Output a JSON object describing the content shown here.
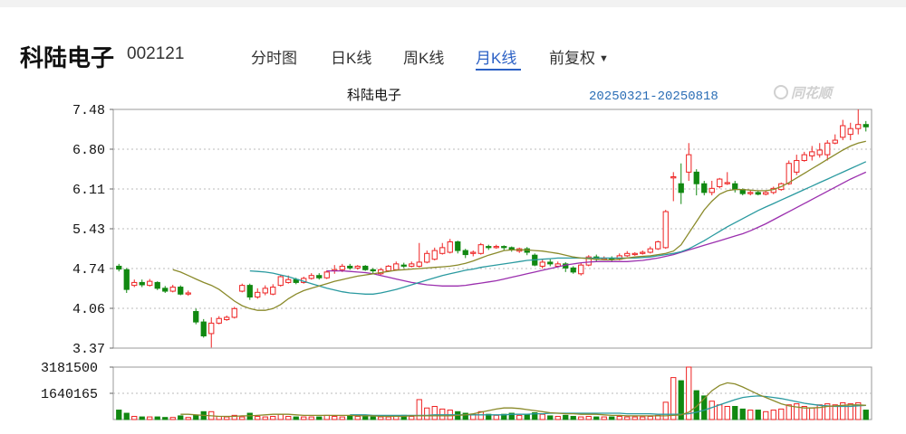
{
  "header": {
    "stock_name": "科陆电子",
    "stock_code": "002121",
    "tabs": [
      {
        "label": "分时图",
        "active": false
      },
      {
        "label": "日K线",
        "active": false
      },
      {
        "label": "周K线",
        "active": false
      },
      {
        "label": "月K线",
        "active": true
      },
      {
        "label": "前复权",
        "active": false,
        "dropdown": true
      }
    ],
    "dropdown_glyph": "▼"
  },
  "colors": {
    "up": "#ee2222",
    "down": "#118811",
    "ma1": "#8a8a2a",
    "ma2": "#2a9aa0",
    "ma3": "#9b2fae",
    "accent": "#2a5fc4"
  },
  "chart_data": {
    "type": "candlestick",
    "title": "科陆电子",
    "date_range": "20250321-20250818",
    "watermark": "同花顺",
    "price_ticks": [
      "7.48",
      "6.80",
      "6.11",
      "5.43",
      "4.74",
      "4.06",
      "3.37"
    ],
    "ylim": [
      3.37,
      7.48
    ],
    "volume_ticks": [
      "3181500",
      "1640165"
    ],
    "volume_max": 3181500,
    "candles": [
      [
        4.78,
        4.73,
        4.82,
        4.69,
        0.18
      ],
      [
        4.72,
        4.38,
        4.75,
        4.32,
        0.12
      ],
      [
        4.45,
        4.5,
        4.55,
        4.42,
        0.06
      ],
      [
        4.5,
        4.46,
        4.55,
        4.42,
        0.05
      ],
      [
        4.45,
        4.52,
        4.56,
        4.43,
        0.05
      ],
      [
        4.5,
        4.4,
        4.52,
        4.37,
        0.05
      ],
      [
        4.4,
        4.35,
        4.44,
        4.32,
        0.04
      ],
      [
        4.35,
        4.42,
        4.46,
        4.33,
        0.04
      ],
      [
        4.42,
        4.3,
        4.45,
        4.28,
        0.07
      ],
      [
        4.3,
        4.32,
        4.36,
        4.27,
        0.04
      ],
      [
        4.0,
        3.82,
        4.05,
        3.78,
        0.08
      ],
      [
        3.82,
        3.58,
        3.87,
        3.55,
        0.15
      ],
      [
        3.62,
        3.8,
        3.9,
        3.38,
        0.15
      ],
      [
        3.8,
        3.88,
        3.92,
        3.78,
        0.06
      ],
      [
        3.86,
        3.9,
        3.93,
        3.84,
        0.05
      ],
      [
        3.9,
        4.05,
        4.08,
        3.88,
        0.08
      ],
      [
        4.35,
        4.45,
        4.48,
        4.33,
        0.05
      ],
      [
        4.45,
        4.25,
        4.48,
        4.2,
        0.12
      ],
      [
        4.25,
        4.33,
        4.4,
        4.22,
        0.06
      ],
      [
        4.32,
        4.4,
        4.45,
        4.28,
        0.05
      ],
      [
        4.3,
        4.42,
        4.47,
        4.28,
        0.06
      ],
      [
        4.45,
        4.6,
        4.63,
        4.43,
        0.1
      ],
      [
        4.5,
        4.55,
        4.62,
        4.48,
        0.06
      ],
      [
        4.55,
        4.5,
        4.58,
        4.47,
        0.05
      ],
      [
        4.5,
        4.57,
        4.6,
        4.48,
        0.05
      ],
      [
        4.57,
        4.62,
        4.66,
        4.55,
        0.05
      ],
      [
        4.62,
        4.58,
        4.66,
        4.55,
        0.05
      ],
      [
        4.58,
        4.68,
        4.71,
        4.56,
        0.08
      ],
      [
        4.7,
        4.72,
        4.8,
        4.65,
        0.06
      ],
      [
        4.72,
        4.78,
        4.82,
        4.68,
        0.05
      ],
      [
        4.78,
        4.75,
        4.82,
        4.72,
        0.06
      ],
      [
        4.75,
        4.78,
        4.8,
        4.72,
        0.06
      ],
      [
        4.78,
        4.72,
        4.8,
        4.7,
        0.08
      ],
      [
        4.72,
        4.7,
        4.75,
        4.66,
        0.05
      ],
      [
        4.65,
        4.72,
        4.75,
        4.63,
        0.05
      ],
      [
        4.7,
        4.78,
        4.8,
        4.68,
        0.05
      ],
      [
        4.72,
        4.82,
        4.86,
        4.7,
        0.06
      ],
      [
        4.8,
        4.78,
        4.84,
        4.75,
        0.08
      ],
      [
        4.78,
        4.82,
        4.86,
        4.76,
        0.06
      ],
      [
        4.78,
        4.85,
        5.18,
        4.76,
        0.38
      ],
      [
        4.85,
        5.0,
        5.05,
        4.83,
        0.22
      ],
      [
        4.9,
        5.05,
        5.1,
        4.88,
        0.25
      ],
      [
        5.0,
        5.1,
        5.18,
        4.98,
        0.2
      ],
      [
        5.02,
        5.2,
        5.25,
        5.0,
        0.18
      ],
      [
        5.2,
        5.05,
        5.22,
        5.0,
        0.15
      ],
      [
        5.05,
        4.98,
        5.08,
        4.92,
        0.12
      ],
      [
        5.0,
        5.02,
        5.05,
        4.95,
        0.1
      ],
      [
        5.0,
        5.15,
        5.18,
        4.98,
        0.15
      ],
      [
        5.12,
        5.1,
        5.15,
        5.06,
        0.1
      ],
      [
        5.1,
        5.12,
        5.15,
        5.08,
        0.08
      ],
      [
        5.12,
        5.1,
        5.14,
        5.06,
        0.1
      ],
      [
        5.1,
        5.06,
        5.12,
        5.03,
        0.12
      ],
      [
        5.04,
        5.08,
        5.1,
        5.01,
        0.08
      ],
      [
        5.08,
        5.02,
        5.11,
        4.97,
        0.09
      ],
      [
        4.97,
        4.8,
        5.0,
        4.78,
        0.13
      ],
      [
        4.78,
        4.85,
        4.9,
        4.74,
        0.1
      ],
      [
        4.85,
        4.82,
        4.9,
        4.78,
        0.07
      ],
      [
        4.78,
        4.82,
        4.86,
        4.76,
        0.06
      ],
      [
        4.82,
        4.75,
        4.85,
        4.68,
        0.08
      ],
      [
        4.75,
        4.68,
        4.78,
        4.65,
        0.06
      ],
      [
        4.65,
        4.8,
        4.84,
        4.62,
        0.05
      ],
      [
        4.8,
        4.94,
        4.97,
        4.78,
        0.06
      ],
      [
        4.94,
        4.9,
        4.98,
        4.86,
        0.05
      ],
      [
        4.9,
        4.92,
        4.95,
        4.88,
        0.05
      ],
      [
        4.92,
        4.9,
        4.95,
        4.86,
        0.05
      ],
      [
        4.9,
        4.96,
        5.0,
        4.88,
        0.06
      ],
      [
        4.96,
        5.0,
        5.04,
        4.94,
        0.05
      ],
      [
        4.98,
        5.0,
        5.02,
        4.96,
        0.05
      ],
      [
        5.0,
        5.02,
        5.05,
        4.98,
        0.05
      ],
      [
        5.02,
        5.08,
        5.12,
        5.0,
        0.06
      ],
      [
        5.08,
        5.2,
        5.22,
        5.06,
        0.08
      ],
      [
        5.1,
        5.72,
        5.75,
        5.08,
        0.33
      ],
      [
        6.3,
        6.32,
        6.4,
        5.9,
        0.8
      ],
      [
        6.2,
        6.05,
        6.55,
        5.85,
        0.74
      ],
      [
        6.4,
        6.7,
        6.9,
        6.25,
        1.0
      ],
      [
        6.4,
        6.2,
        6.45,
        6.0,
        0.55
      ],
      [
        6.2,
        6.05,
        6.25,
        6.0,
        0.45
      ],
      [
        6.05,
        6.12,
        6.25,
        6.0,
        0.35
      ],
      [
        6.15,
        6.28,
        6.3,
        6.12,
        0.28
      ],
      [
        6.2,
        6.22,
        6.4,
        6.18,
        0.25
      ],
      [
        6.2,
        6.1,
        6.25,
        6.05,
        0.25
      ],
      [
        6.1,
        6.03,
        6.12,
        6.0,
        0.2
      ],
      [
        6.03,
        6.05,
        6.08,
        6.0,
        0.18
      ],
      [
        6.05,
        6.02,
        6.08,
        6.0,
        0.18
      ],
      [
        6.02,
        6.05,
        6.08,
        6.0,
        0.15
      ],
      [
        6.05,
        6.12,
        6.15,
        6.02,
        0.18
      ],
      [
        6.1,
        6.2,
        6.22,
        6.08,
        0.2
      ],
      [
        6.2,
        6.55,
        6.6,
        6.18,
        0.28
      ],
      [
        6.4,
        6.6,
        6.7,
        6.35,
        0.3
      ],
      [
        6.6,
        6.7,
        6.75,
        6.58,
        0.25
      ],
      [
        6.68,
        6.75,
        6.85,
        6.6,
        0.22
      ],
      [
        6.7,
        6.78,
        6.9,
        6.65,
        0.28
      ],
      [
        6.7,
        6.9,
        6.95,
        6.6,
        0.3
      ],
      [
        6.9,
        6.95,
        7.05,
        6.88,
        0.28
      ],
      [
        7.0,
        7.2,
        7.3,
        6.95,
        0.32
      ],
      [
        7.05,
        7.15,
        7.25,
        6.95,
        0.3
      ],
      [
        7.15,
        7.22,
        7.48,
        7.05,
        0.32
      ],
      [
        7.22,
        7.18,
        7.28,
        7.1,
        0.18
      ]
    ],
    "ma1": [
      4.72,
      4.68,
      4.62,
      4.56,
      4.5,
      4.45,
      4.38,
      4.28,
      4.18,
      4.1,
      4.05,
      4.02,
      4.02,
      4.05,
      4.12,
      4.22,
      4.3,
      4.36,
      4.4,
      4.44,
      4.48,
      4.52,
      4.55,
      4.58,
      4.61,
      4.63,
      4.65,
      4.67,
      4.69,
      4.71,
      4.72,
      4.73,
      4.74,
      4.75,
      4.76,
      4.77,
      4.78,
      4.8,
      4.83,
      4.87,
      4.92,
      4.97,
      5.01,
      5.05,
      5.06,
      5.06,
      5.06,
      5.05,
      5.04,
      5.02,
      5.0,
      4.97,
      4.94,
      4.92,
      4.91,
      4.9,
      4.89,
      4.89,
      4.9,
      4.92,
      4.94,
      4.95,
      4.96,
      4.98,
      5.0,
      5.04,
      5.15,
      5.35,
      5.55,
      5.75,
      5.9,
      6.02,
      6.08,
      6.1,
      6.1,
      6.09,
      6.08,
      6.08,
      6.1,
      6.15,
      6.22,
      6.3,
      6.38,
      6.46,
      6.54,
      6.62,
      6.7,
      6.78,
      6.85,
      6.9,
      6.93
    ],
    "ma2": [
      4.7,
      4.69,
      4.68,
      4.66,
      4.63,
      4.6,
      4.56,
      4.52,
      4.48,
      4.44,
      4.4,
      4.37,
      4.34,
      4.32,
      4.31,
      4.3,
      4.3,
      4.32,
      4.35,
      4.38,
      4.42,
      4.46,
      4.5,
      4.54,
      4.58,
      4.62,
      4.65,
      4.68,
      4.71,
      4.73,
      4.76,
      4.78,
      4.8,
      4.82,
      4.84,
      4.86,
      4.88,
      4.89,
      4.9,
      4.91,
      4.92,
      4.92,
      4.92,
      4.92,
      4.92,
      4.92,
      4.92,
      4.92,
      4.92,
      4.92,
      4.92,
      4.93,
      4.94,
      4.96,
      4.98,
      5.0,
      5.03,
      5.08,
      5.15,
      5.22,
      5.3,
      5.38,
      5.46,
      5.53,
      5.6,
      5.67,
      5.74,
      5.8,
      5.86,
      5.92,
      5.98,
      6.04,
      6.1,
      6.16,
      6.22,
      6.28,
      6.34,
      6.4,
      6.46,
      6.52,
      6.58
    ],
    "ma3": [
      4.7,
      4.7,
      4.7,
      4.69,
      4.68,
      4.67,
      4.65,
      4.62,
      4.59,
      4.56,
      4.53,
      4.5,
      4.48,
      4.46,
      4.45,
      4.44,
      4.44,
      4.44,
      4.45,
      4.47,
      4.49,
      4.51,
      4.53,
      4.56,
      4.59,
      4.62,
      4.65,
      4.68,
      4.71,
      4.74,
      4.77,
      4.8,
      4.82,
      4.84,
      4.85,
      4.86,
      4.86,
      4.86,
      4.86,
      4.86,
      4.87,
      4.88,
      4.9,
      4.92,
      4.95,
      4.98,
      5.02,
      5.06,
      5.1,
      5.14,
      5.18,
      5.22,
      5.26,
      5.3,
      5.34,
      5.39,
      5.45,
      5.51,
      5.58,
      5.65,
      5.72,
      5.79,
      5.86,
      5.93,
      6.0,
      6.07,
      6.14,
      6.21,
      6.28,
      6.34,
      6.4
    ],
    "vol_ma1": [
      0.1,
      0.1,
      0.09,
      0.08,
      0.07,
      0.06,
      0.06,
      0.06,
      0.07,
      0.07,
      0.08,
      0.09,
      0.1,
      0.1,
      0.1,
      0.09,
      0.08,
      0.08,
      0.08,
      0.08,
      0.08,
      0.08,
      0.08,
      0.07,
      0.07,
      0.07,
      0.06,
      0.06,
      0.06,
      0.06,
      0.07,
      0.07,
      0.07,
      0.07,
      0.07,
      0.07,
      0.08,
      0.09,
      0.11,
      0.14,
      0.17,
      0.2,
      0.22,
      0.22,
      0.21,
      0.19,
      0.17,
      0.15,
      0.13,
      0.12,
      0.11,
      0.11,
      0.1,
      0.1,
      0.1,
      0.09,
      0.08,
      0.08,
      0.07,
      0.07,
      0.07,
      0.07,
      0.07,
      0.07,
      0.08,
      0.09,
      0.14,
      0.25,
      0.4,
      0.55,
      0.65,
      0.7,
      0.68,
      0.62,
      0.55,
      0.48,
      0.42,
      0.36,
      0.3,
      0.26,
      0.24,
      0.22,
      0.22,
      0.23,
      0.25,
      0.26,
      0.27,
      0.28,
      0.28,
      0.27
    ],
    "vol_ma2": [
      0.09,
      0.09,
      0.09,
      0.08,
      0.08,
      0.08,
      0.08,
      0.08,
      0.08,
      0.08,
      0.08,
      0.09,
      0.09,
      0.09,
      0.09,
      0.09,
      0.09,
      0.09,
      0.09,
      0.09,
      0.09,
      0.1,
      0.1,
      0.1,
      0.11,
      0.11,
      0.12,
      0.12,
      0.12,
      0.12,
      0.12,
      0.12,
      0.12,
      0.12,
      0.12,
      0.12,
      0.11,
      0.11,
      0.11,
      0.11,
      0.1,
      0.1,
      0.1,
      0.1,
      0.11,
      0.14,
      0.18,
      0.23,
      0.28,
      0.33,
      0.38,
      0.42,
      0.44,
      0.45,
      0.44,
      0.42,
      0.4,
      0.37,
      0.34,
      0.31,
      0.29,
      0.27,
      0.26,
      0.25,
      0.25,
      0.25,
      0.26,
      0.27
    ]
  }
}
